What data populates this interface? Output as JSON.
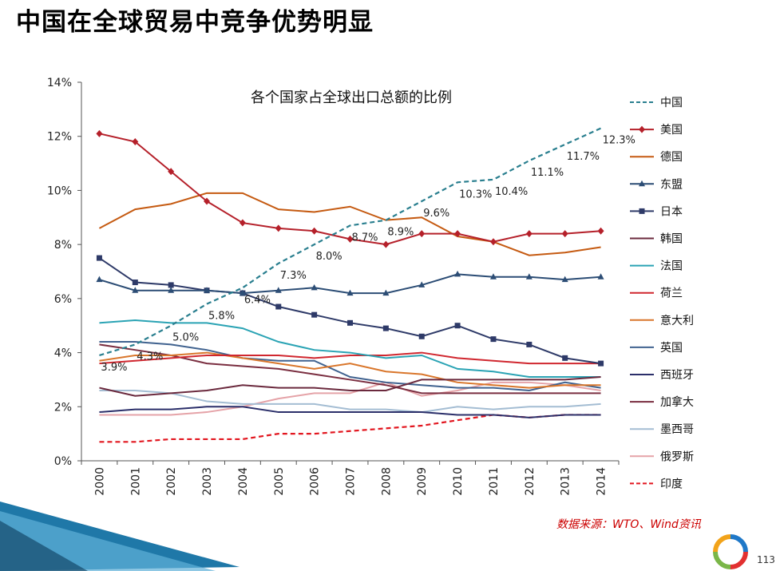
{
  "slide_title": "中国在全球贸易中竞争优势明显",
  "source_note": "数据来源：WTO、Wind资讯",
  "page_number": "113",
  "chart_data": {
    "type": "line",
    "title": "各个国家占全球出口总额的比例",
    "xlabel": "",
    "ylabel": "",
    "x": [
      "2000",
      "2001",
      "2002",
      "2003",
      "2004",
      "2005",
      "2006",
      "2007",
      "2008",
      "2009",
      "2010",
      "2011",
      "2012",
      "2013",
      "2014"
    ],
    "y_ticks": [
      "0%",
      "2%",
      "4%",
      "6%",
      "8%",
      "10%",
      "12%",
      "14%"
    ],
    "ylim": [
      0,
      14
    ],
    "legend_position": "right",
    "grid": false,
    "series": [
      {
        "name": "中国",
        "color": "#2a7f8f",
        "dash": "dashed",
        "marker": "none",
        "values": [
          3.9,
          4.3,
          5.0,
          5.8,
          6.4,
          7.3,
          8.0,
          8.7,
          8.9,
          9.6,
          10.3,
          10.4,
          11.1,
          11.7,
          12.3
        ],
        "labels": [
          "3.9%",
          "4.3%",
          "5.0%",
          "5.8%",
          "6.4%",
          "7.3%",
          "8.0%",
          "8.7%",
          "8.9%",
          "9.6%",
          "10.3%",
          "10.4%",
          "11.1%",
          "11.7%",
          "12.3%"
        ]
      },
      {
        "name": "美国",
        "color": "#b5202a",
        "dash": "solid",
        "marker": "diamond",
        "values": [
          12.1,
          11.8,
          10.7,
          9.6,
          8.8,
          8.6,
          8.5,
          8.2,
          8.0,
          8.4,
          8.4,
          8.1,
          8.4,
          8.4,
          8.5
        ]
      },
      {
        "name": "德国",
        "color": "#c55a11",
        "dash": "solid",
        "marker": "none",
        "values": [
          8.6,
          9.3,
          9.5,
          9.9,
          9.9,
          9.3,
          9.2,
          9.4,
          8.9,
          9.0,
          8.3,
          8.1,
          7.6,
          7.7,
          7.9
        ]
      },
      {
        "name": "东盟",
        "color": "#2c4d75",
        "dash": "solid",
        "marker": "triangle",
        "values": [
          6.7,
          6.3,
          6.3,
          6.3,
          6.2,
          6.3,
          6.4,
          6.2,
          6.2,
          6.5,
          6.9,
          6.8,
          6.8,
          6.7,
          6.8
        ]
      },
      {
        "name": "日本",
        "color": "#2e3a68",
        "dash": "solid",
        "marker": "square",
        "values": [
          7.5,
          6.6,
          6.5,
          6.3,
          6.2,
          5.7,
          5.4,
          5.1,
          4.9,
          4.6,
          5.0,
          4.5,
          4.3,
          3.8,
          3.6
        ]
      },
      {
        "name": "韩国",
        "color": "#6b2a3e",
        "dash": "solid",
        "marker": "none",
        "values": [
          2.7,
          2.4,
          2.5,
          2.6,
          2.8,
          2.7,
          2.7,
          2.6,
          2.6,
          3.0,
          3.0,
          3.0,
          3.0,
          3.0,
          3.1
        ]
      },
      {
        "name": "法国",
        "color": "#2aa3b4",
        "dash": "solid",
        "marker": "none",
        "values": [
          5.1,
          5.2,
          5.1,
          5.1,
          4.9,
          4.4,
          4.1,
          4.0,
          3.8,
          3.9,
          3.4,
          3.3,
          3.1,
          3.1,
          3.1
        ]
      },
      {
        "name": "荷兰",
        "color": "#d0272f",
        "dash": "solid",
        "marker": "none",
        "values": [
          3.6,
          3.7,
          3.8,
          3.9,
          3.9,
          3.9,
          3.8,
          3.9,
          3.9,
          4.0,
          3.8,
          3.7,
          3.6,
          3.6,
          3.6
        ]
      },
      {
        "name": "意大利",
        "color": "#d9762b",
        "dash": "solid",
        "marker": "none",
        "values": [
          3.7,
          3.9,
          3.9,
          4.0,
          3.8,
          3.6,
          3.4,
          3.6,
          3.3,
          3.2,
          2.9,
          2.8,
          2.7,
          2.8,
          2.8
        ]
      },
      {
        "name": "英国",
        "color": "#40628f",
        "dash": "solid",
        "marker": "none",
        "values": [
          4.4,
          4.4,
          4.3,
          4.1,
          3.8,
          3.7,
          3.7,
          3.1,
          2.9,
          2.8,
          2.7,
          2.7,
          2.6,
          2.9,
          2.7
        ]
      },
      {
        "name": "西班牙",
        "color": "#2b2f6a",
        "dash": "solid",
        "marker": "none",
        "values": [
          1.8,
          1.9,
          1.9,
          2.0,
          2.0,
          1.8,
          1.8,
          1.8,
          1.8,
          1.8,
          1.7,
          1.7,
          1.6,
          1.7,
          1.7
        ]
      },
      {
        "name": "加拿大",
        "color": "#7a2e40",
        "dash": "solid",
        "marker": "none",
        "values": [
          4.3,
          4.1,
          3.9,
          3.6,
          3.5,
          3.4,
          3.2,
          3.0,
          2.8,
          2.5,
          2.5,
          2.5,
          2.5,
          2.5,
          2.5
        ]
      },
      {
        "name": "墨西哥",
        "color": "#a4bdd3",
        "dash": "solid",
        "marker": "none",
        "values": [
          2.6,
          2.6,
          2.5,
          2.2,
          2.1,
          2.1,
          2.1,
          1.9,
          1.9,
          1.8,
          2.0,
          1.9,
          2.0,
          2.0,
          2.1
        ]
      },
      {
        "name": "俄罗斯",
        "color": "#e5a3a8",
        "dash": "solid",
        "marker": "none",
        "values": [
          1.7,
          1.7,
          1.7,
          1.8,
          2.0,
          2.3,
          2.5,
          2.5,
          2.9,
          2.4,
          2.6,
          2.9,
          2.9,
          2.8,
          2.6
        ]
      },
      {
        "name": "印度",
        "color": "#e2161f",
        "dash": "dashed",
        "marker": "none",
        "values": [
          0.7,
          0.7,
          0.8,
          0.8,
          0.8,
          1.0,
          1.0,
          1.1,
          1.2,
          1.3,
          1.5,
          1.7,
          1.6,
          1.7,
          1.7
        ]
      }
    ]
  }
}
